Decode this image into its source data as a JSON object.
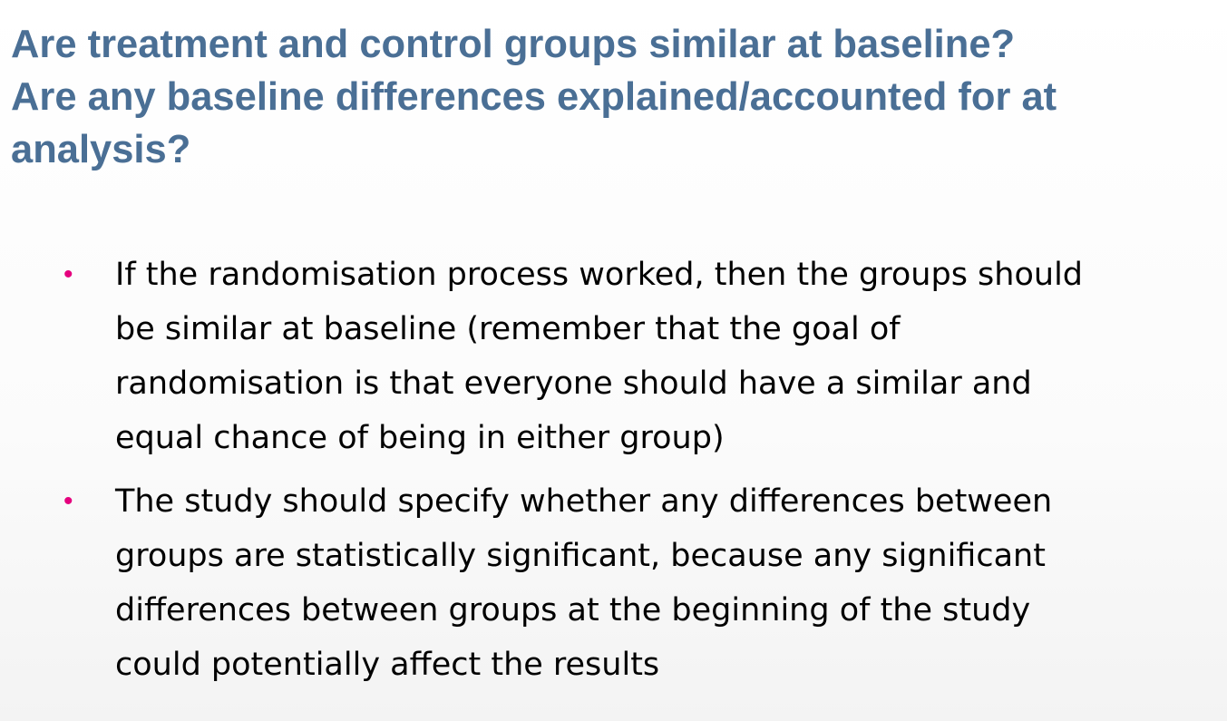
{
  "title": {
    "lines": [
      "Are treatment and control groups similar at baseline?",
      "Are any baseline differences explained/accounted for at",
      "analysis?"
    ]
  },
  "bullet_marker": "•",
  "bullets": [
    {
      "lines": [
        "If the randomisation process worked, then the groups should",
        "be similar at baseline (remember that the goal of",
        "randomisation is that everyone should have a similar and",
        "equal chance of being in either group)"
      ]
    },
    {
      "lines": [
        "The study should specify whether any differences between",
        "groups are statistically significant, because any significant",
        "differences between groups at the beginning of the study",
        "could potentially affect the results"
      ]
    }
  ],
  "colors": {
    "title": "#4a6f95",
    "bullet_marker": "#e5007e",
    "body_text": "#000000"
  }
}
